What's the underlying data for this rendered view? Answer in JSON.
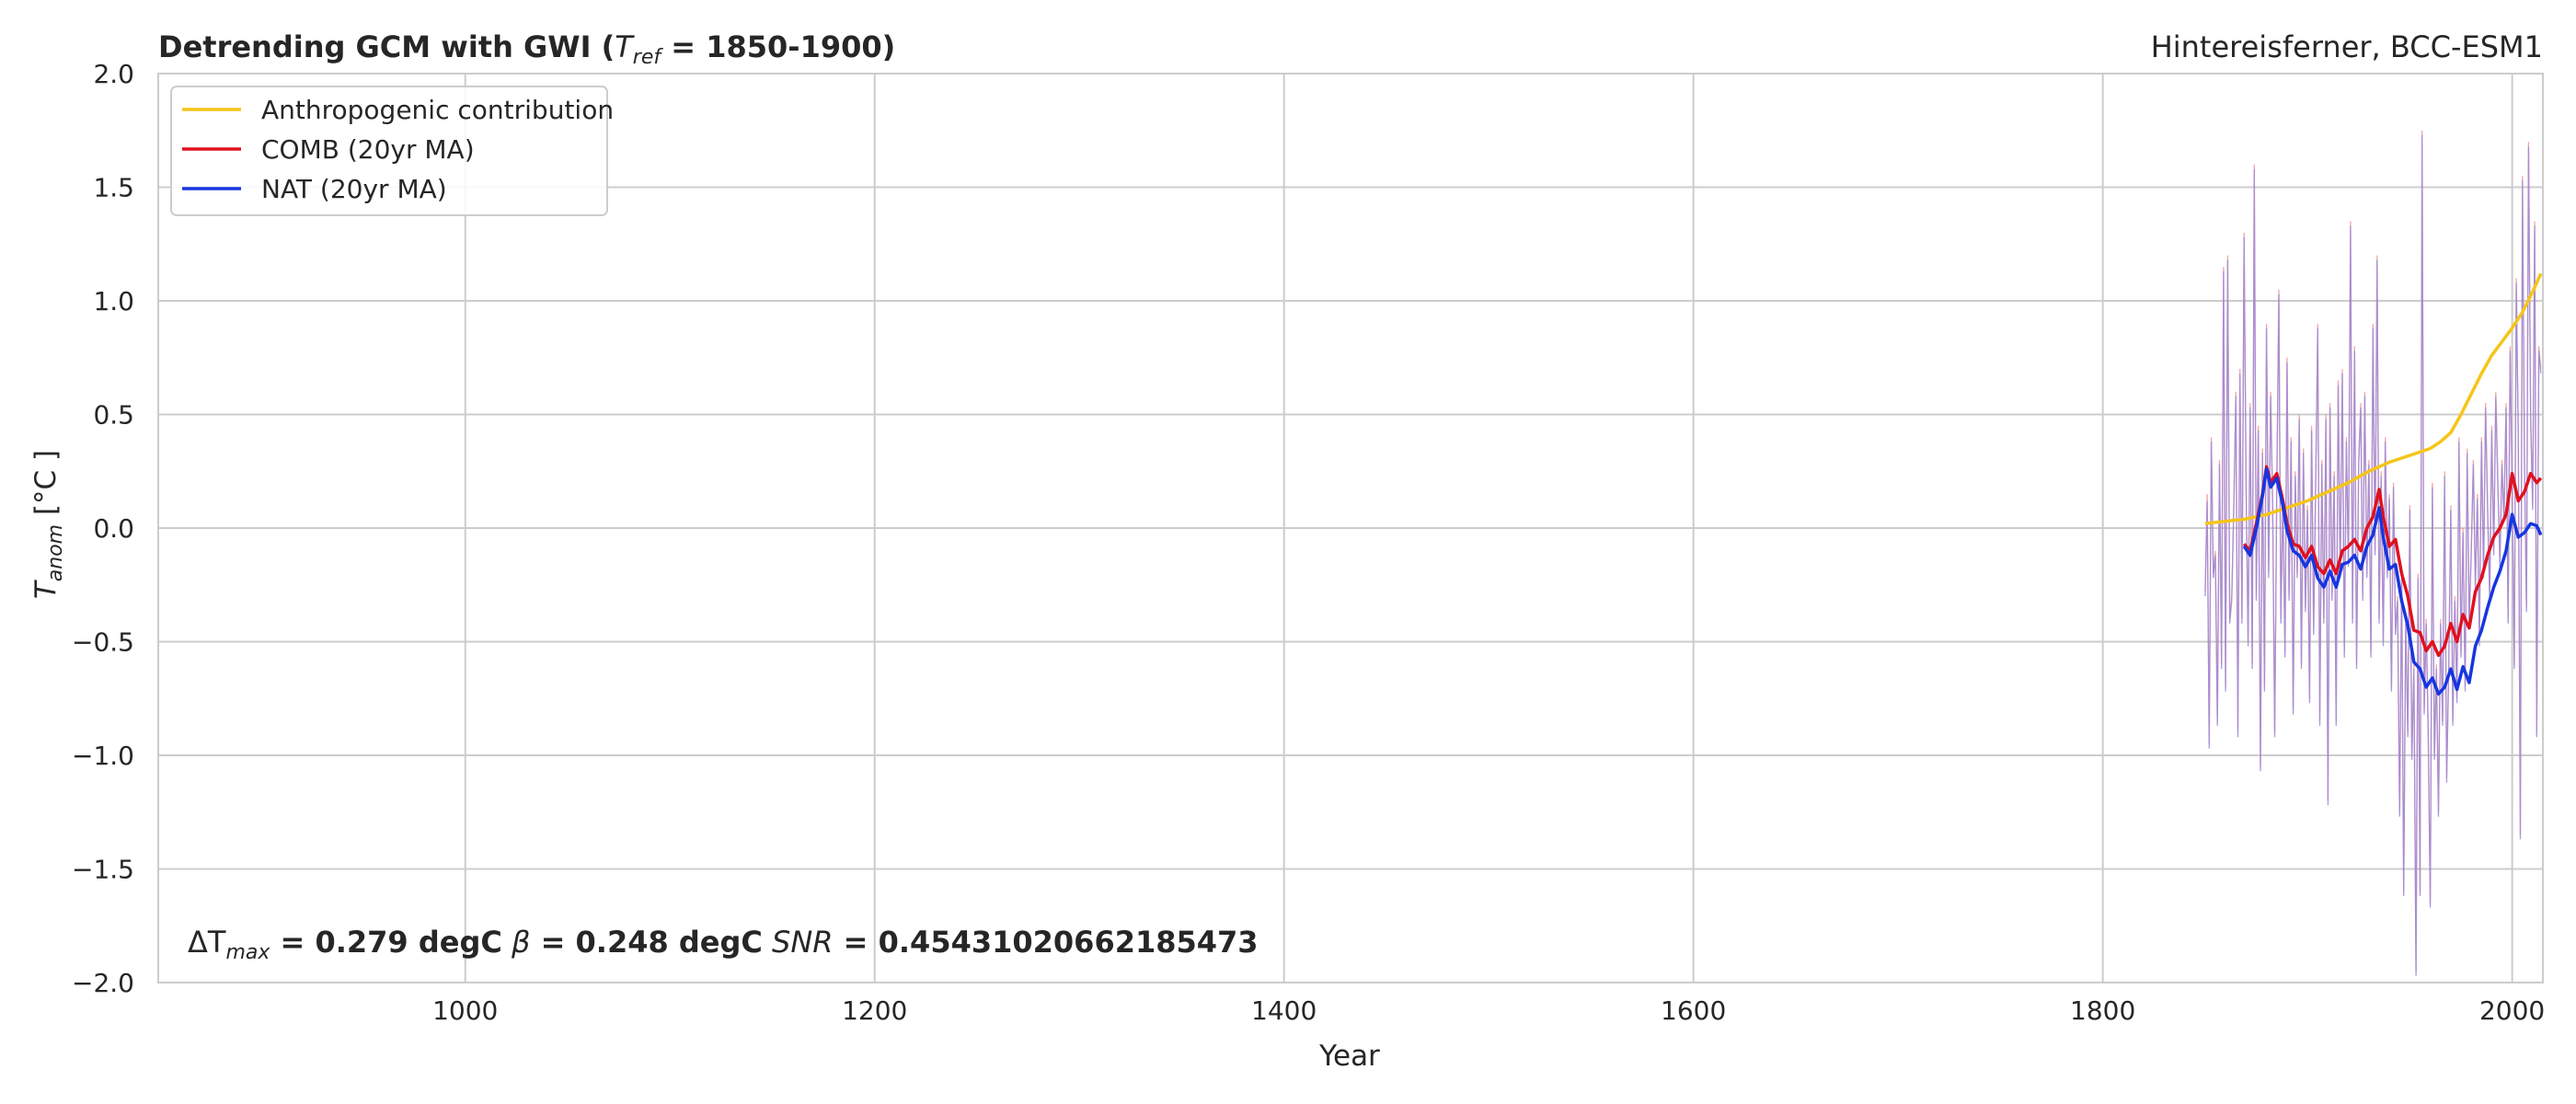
{
  "chart_data": {
    "type": "line",
    "title": "Detrending GCM with GWI (T_ref = 1850-1900)",
    "title_parts": {
      "prefix": "Detrending GCM with GWI (",
      "var": "T",
      "sub": "ref",
      "suffix": " = 1850-1900)"
    },
    "subtitle": "Hintereisferner, BCC-ESM1",
    "xlabel": "Year",
    "ylabel": "T_anom [°C]",
    "ylabel_parts": {
      "var": "T",
      "sub": "anom",
      "suffix": " [°C ]"
    },
    "xlim": [
      850,
      2015
    ],
    "ylim": [
      -2.0,
      2.0
    ],
    "xticks": [
      1000,
      1200,
      1400,
      1600,
      1800,
      2000
    ],
    "yticks": [
      -2.0,
      -1.5,
      -1.0,
      -0.5,
      0.0,
      0.5,
      1.0,
      1.5,
      2.0
    ],
    "xtick_labels": [
      "1000",
      "1200",
      "1400",
      "1600",
      "1800",
      "2000"
    ],
    "ytick_labels": [
      "−2.0",
      "−1.5",
      "−1.0",
      "−0.5",
      "0.0",
      "0.5",
      "1.0",
      "1.5",
      "2.0"
    ],
    "grid": true,
    "legend_position": "top-left",
    "annotation": {
      "text": "ΔT_max = 0.279 degC β = 0.248 degC SNR = 0.45431020662185473",
      "delta_label": "ΔT",
      "delta_sub": "max",
      "delta_value": " = 0.279 degC",
      "beta_label": " β",
      "beta_value": " = 0.248 degC",
      "snr_label": " SNR",
      "snr_value": " = 0.45431020662185473"
    },
    "colors": {
      "anthropogenic": "#f5c518",
      "comb": "#e0101e",
      "nat": "#1636e0",
      "comb_annual": "#f08a8a",
      "nat_annual": "#9a88d8",
      "grid": "#cccccc",
      "spine": "#cccccc"
    },
    "series": [
      {
        "name": "Anthropogenic contribution",
        "x": [
          1850,
          1860,
          1870,
          1880,
          1890,
          1900,
          1910,
          1920,
          1930,
          1940,
          1950,
          1960,
          1965,
          1970,
          1975,
          1980,
          1985,
          1990,
          1995,
          2000,
          2005,
          2010,
          2014
        ],
        "y": [
          0.02,
          0.03,
          0.04,
          0.06,
          0.09,
          0.12,
          0.16,
          0.2,
          0.25,
          0.29,
          0.32,
          0.35,
          0.38,
          0.42,
          0.5,
          0.59,
          0.68,
          0.76,
          0.82,
          0.88,
          0.95,
          1.04,
          1.12
        ]
      },
      {
        "name": "COMB (20yr MA)",
        "x": [
          1869,
          1872,
          1875,
          1878,
          1880,
          1882,
          1885,
          1888,
          1890,
          1893,
          1896,
          1899,
          1902,
          1905,
          1908,
          1911,
          1914,
          1917,
          1920,
          1923,
          1926,
          1929,
          1932,
          1935,
          1937,
          1940,
          1943,
          1946,
          1949,
          1952,
          1955,
          1958,
          1961,
          1964,
          1967,
          1970,
          1973,
          1976,
          1979,
          1982,
          1985,
          1988,
          1991,
          1994,
          1997,
          2000,
          2003,
          2006,
          2009,
          2012,
          2014
        ],
        "y": [
          -0.07,
          -0.1,
          0.02,
          0.15,
          0.27,
          0.2,
          0.24,
          0.12,
          0.02,
          -0.07,
          -0.08,
          -0.13,
          -0.08,
          -0.17,
          -0.2,
          -0.14,
          -0.2,
          -0.1,
          -0.08,
          -0.05,
          -0.1,
          0.0,
          0.05,
          0.17,
          0.05,
          -0.08,
          -0.05,
          -0.2,
          -0.3,
          -0.45,
          -0.46,
          -0.54,
          -0.5,
          -0.56,
          -0.52,
          -0.42,
          -0.5,
          -0.38,
          -0.44,
          -0.28,
          -0.22,
          -0.12,
          -0.04,
          0.0,
          0.06,
          0.24,
          0.12,
          0.16,
          0.24,
          0.2,
          0.22
        ]
      },
      {
        "name": "NAT (20yr MA)",
        "x": [
          1869,
          1872,
          1875,
          1878,
          1880,
          1882,
          1885,
          1888,
          1890,
          1893,
          1896,
          1899,
          1902,
          1905,
          1908,
          1911,
          1914,
          1917,
          1920,
          1923,
          1926,
          1929,
          1932,
          1935,
          1937,
          1940,
          1943,
          1946,
          1949,
          1952,
          1955,
          1958,
          1961,
          1964,
          1967,
          1970,
          1973,
          1976,
          1979,
          1982,
          1985,
          1988,
          1991,
          1994,
          1997,
          2000,
          2003,
          2006,
          2009,
          2012,
          2014
        ],
        "y": [
          -0.08,
          -0.12,
          0.0,
          0.14,
          0.26,
          0.18,
          0.22,
          0.1,
          -0.01,
          -0.1,
          -0.12,
          -0.17,
          -0.12,
          -0.22,
          -0.26,
          -0.19,
          -0.26,
          -0.16,
          -0.15,
          -0.12,
          -0.18,
          -0.08,
          -0.03,
          0.09,
          -0.04,
          -0.18,
          -0.16,
          -0.32,
          -0.43,
          -0.59,
          -0.62,
          -0.7,
          -0.66,
          -0.73,
          -0.7,
          -0.62,
          -0.71,
          -0.61,
          -0.68,
          -0.52,
          -0.45,
          -0.35,
          -0.26,
          -0.19,
          -0.1,
          0.06,
          -0.04,
          -0.02,
          0.02,
          0.01,
          -0.03
        ]
      }
    ],
    "annual_series": [
      {
        "x": [
          1850,
          1851,
          1852,
          1853,
          1854,
          1855,
          1856,
          1857,
          1858,
          1859,
          1860,
          1861,
          1862,
          1863,
          1864,
          1865,
          1866,
          1867,
          1868,
          1869,
          1870,
          1871,
          1872,
          1873,
          1874,
          1875,
          1876,
          1877,
          1878,
          1879,
          1880,
          1881,
          1882,
          1883,
          1884,
          1885,
          1886,
          1887,
          1888,
          1889,
          1890,
          1891,
          1892,
          1893,
          1894,
          1895,
          1896,
          1897,
          1898,
          1899,
          1900,
          1901,
          1902,
          1903,
          1904,
          1905,
          1906,
          1907,
          1908,
          1909,
          1910,
          1911,
          1912,
          1913,
          1914,
          1915,
          1916,
          1917,
          1918,
          1919,
          1920,
          1921,
          1922,
          1923,
          1924,
          1925,
          1926,
          1927,
          1928,
          1929,
          1930,
          1931,
          1932,
          1933,
          1934,
          1935,
          1936,
          1937,
          1938,
          1939,
          1940,
          1941,
          1942,
          1943,
          1944,
          1945,
          1946,
          1947,
          1948,
          1949,
          1950,
          1951,
          1952,
          1953,
          1954,
          1955,
          1956,
          1957,
          1958,
          1959,
          1960,
          1961,
          1962,
          1963,
          1964,
          1965,
          1966,
          1967,
          1968,
          1969,
          1970,
          1971,
          1972,
          1973,
          1974,
          1975,
          1976,
          1977,
          1978,
          1979,
          1980,
          1981,
          1982,
          1983,
          1984,
          1985,
          1986,
          1987,
          1988,
          1989,
          1990,
          1991,
          1992,
          1993,
          1994,
          1995,
          1996,
          1997,
          1998,
          1999,
          2000,
          2001,
          2002,
          2003,
          2004,
          2005,
          2006,
          2007,
          2008,
          2009,
          2010,
          2011,
          2012,
          2013,
          2014
        ],
        "comb": [
          -0.28,
          0.15,
          -0.95,
          0.4,
          -0.2,
          -0.1,
          -0.85,
          0.3,
          -0.6,
          1.15,
          -0.7,
          1.2,
          -0.4,
          -0.3,
          0.1,
          0.6,
          -0.9,
          0.7,
          -0.4,
          1.3,
          0.2,
          -0.5,
          0.55,
          -0.6,
          1.6,
          -0.3,
          0.45,
          -1.05,
          0.35,
          -0.7,
          0.9,
          -0.2,
          0.6,
          0.1,
          -0.9,
          0.2,
          1.05,
          -0.4,
          0.15,
          -0.55,
          0.75,
          -0.3,
          0.4,
          -0.8,
          0.25,
          -0.2,
          0.5,
          -0.6,
          0.35,
          -0.35,
          0.1,
          -0.75,
          0.45,
          -0.45,
          0.2,
          0.9,
          -0.85,
          0.3,
          -0.4,
          0.5,
          -1.2,
          0.55,
          -0.3,
          0.25,
          -0.85,
          0.65,
          -0.2,
          0.7,
          -0.55,
          0.4,
          -0.15,
          1.35,
          -0.4,
          0.8,
          -0.6,
          0.3,
          0.55,
          -0.3,
          0.6,
          -0.2,
          0.3,
          -0.55,
          0.9,
          -0.1,
          1.2,
          -0.4,
          0.25,
          -0.5,
          0.4,
          -0.2,
          0.15,
          -0.7,
          0.2,
          -0.45,
          -0.3,
          -1.25,
          -0.2,
          -1.6,
          -0.4,
          -0.9,
          0.1,
          -1.0,
          -0.6,
          -1.95,
          -0.2,
          -1.6,
          1.75,
          -0.8,
          -0.4,
          -0.9,
          -1.65,
          0.2,
          -1.0,
          -0.6,
          -1.25,
          -0.4,
          -0.85,
          0.25,
          -1.1,
          -0.6,
          0.1,
          -0.85,
          -0.3,
          -0.75,
          0.4,
          -0.55,
          0.0,
          -0.7,
          0.35,
          -0.4,
          -0.1,
          0.3,
          -0.25,
          0.15,
          -0.5,
          0.4,
          -0.2,
          0.55,
          0.1,
          -0.3,
          0.45,
          -0.1,
          0.6,
          0.2,
          -0.15,
          0.3,
          0.05,
          0.55,
          -0.4,
          0.8,
          0.2,
          -0.6,
          1.1,
          0.4,
          -1.35,
          1.55,
          0.3,
          -0.35,
          1.7,
          0.5,
          0.1,
          1.35,
          -0.9,
          0.8,
          0.7
        ],
        "nat": [
          -0.3,
          0.12,
          -0.97,
          0.38,
          -0.22,
          -0.12,
          -0.87,
          0.28,
          -0.62,
          1.13,
          -0.72,
          1.18,
          -0.42,
          -0.32,
          0.08,
          0.58,
          -0.92,
          0.68,
          -0.42,
          1.28,
          0.18,
          -0.52,
          0.53,
          -0.62,
          1.58,
          -0.32,
          0.43,
          -1.07,
          0.33,
          -0.72,
          0.88,
          -0.22,
          0.58,
          0.08,
          -0.92,
          0.18,
          1.03,
          -0.42,
          0.13,
          -0.57,
          0.73,
          -0.32,
          0.38,
          -0.82,
          0.23,
          -0.22,
          0.48,
          -0.62,
          0.33,
          -0.37,
          0.08,
          -0.77,
          0.43,
          -0.47,
          0.18,
          0.88,
          -0.87,
          0.28,
          -0.42,
          0.48,
          -1.22,
          0.53,
          -0.32,
          0.23,
          -0.87,
          0.63,
          -0.22,
          0.68,
          -0.57,
          0.38,
          -0.17,
          1.33,
          -0.42,
          0.78,
          -0.62,
          0.28,
          0.53,
          -0.32,
          0.58,
          -0.22,
          0.28,
          -0.57,
          0.88,
          -0.12,
          1.18,
          -0.42,
          0.23,
          -0.52,
          0.38,
          -0.22,
          0.13,
          -0.72,
          0.18,
          -0.47,
          -0.32,
          -1.27,
          -0.22,
          -1.62,
          -0.42,
          -0.92,
          0.08,
          -1.02,
          -0.62,
          -1.97,
          -0.22,
          -1.62,
          1.73,
          -0.82,
          -0.42,
          -0.92,
          -1.67,
          0.18,
          -1.02,
          -0.62,
          -1.27,
          -0.42,
          -0.87,
          0.23,
          -1.12,
          -0.62,
          0.08,
          -0.87,
          -0.32,
          -0.77,
          0.38,
          -0.57,
          -0.02,
          -0.72,
          0.33,
          -0.42,
          -0.12,
          0.28,
          -0.27,
          0.13,
          -0.52,
          0.38,
          -0.22,
          0.53,
          0.08,
          -0.32,
          0.43,
          -0.12,
          0.58,
          0.18,
          -0.17,
          0.28,
          0.03,
          0.53,
          -0.42,
          0.78,
          0.18,
          -0.62,
          1.08,
          0.38,
          -1.37,
          1.53,
          0.28,
          -0.37,
          1.68,
          0.48,
          0.08,
          1.33,
          -0.92,
          0.78,
          0.68
        ]
      }
    ]
  }
}
